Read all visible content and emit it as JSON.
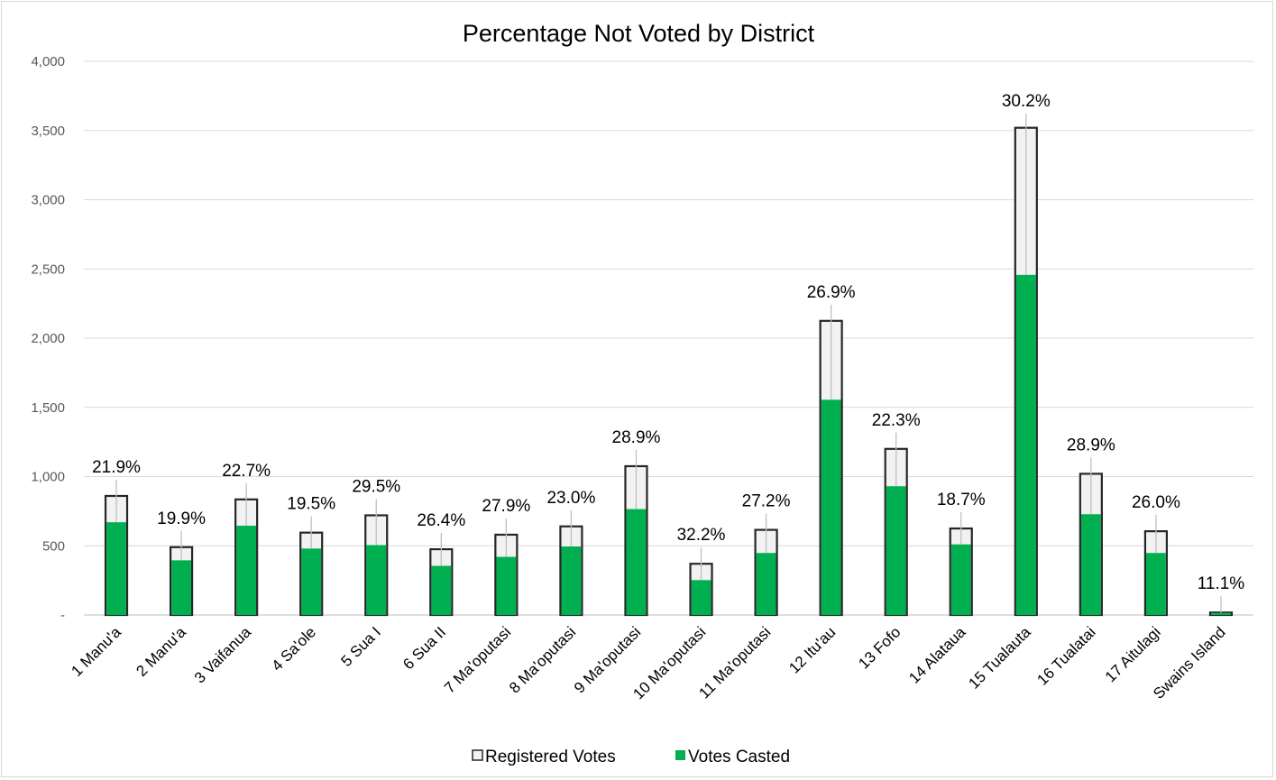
{
  "chart_data": {
    "type": "bar",
    "title": "Percentage Not Voted by District",
    "xlabel": "",
    "ylabel": "",
    "ylim": [
      0,
      4000
    ],
    "ytick_values": [
      0,
      500,
      1000,
      1500,
      2000,
      2500,
      3000,
      3500,
      4000
    ],
    "ytick_labels": [
      "-",
      "500",
      "1,000",
      "1,500",
      "2,000",
      "2,500",
      "3,000",
      "3,500",
      "4,000"
    ],
    "grid": true,
    "legend_position": "bottom",
    "categories": [
      "1 Manu'a",
      "2 Manu'a",
      "3 Vaifanua",
      "4 Sa'ole",
      "5 Sua I",
      "6 Sua II",
      "7 Ma'oputasi",
      "8 Ma'oputasi",
      "9 Ma'oputasi",
      "10 Ma'oputasi",
      "11 Ma'oputasi",
      "12 Itu'au",
      "13 Fofo",
      "14 Alataua",
      "15 Tualauta",
      "16 Tualatai",
      "17 Aitulagi",
      "Swains Island"
    ],
    "series": [
      {
        "name": "Registered Votes",
        "color": "#f2f2f2",
        "values": [
          860,
          490,
          835,
          595,
          720,
          475,
          580,
          640,
          1075,
          370,
          615,
          2125,
          1200,
          625,
          3520,
          1020,
          605,
          18
        ]
      },
      {
        "name": "Votes Casted",
        "color": "#00b050",
        "values": [
          670,
          395,
          645,
          480,
          505,
          355,
          420,
          495,
          765,
          252,
          448,
          1555,
          930,
          510,
          2457,
          728,
          448,
          16
        ]
      }
    ],
    "data_labels": [
      "21.9%",
      "19.9%",
      "22.7%",
      "19.5%",
      "29.5%",
      "26.4%",
      "27.9%",
      "23.0%",
      "28.9%",
      "32.2%",
      "27.2%",
      "26.9%",
      "22.3%",
      "18.7%",
      "30.2%",
      "28.9%",
      "26.0%",
      "11.1%"
    ]
  }
}
